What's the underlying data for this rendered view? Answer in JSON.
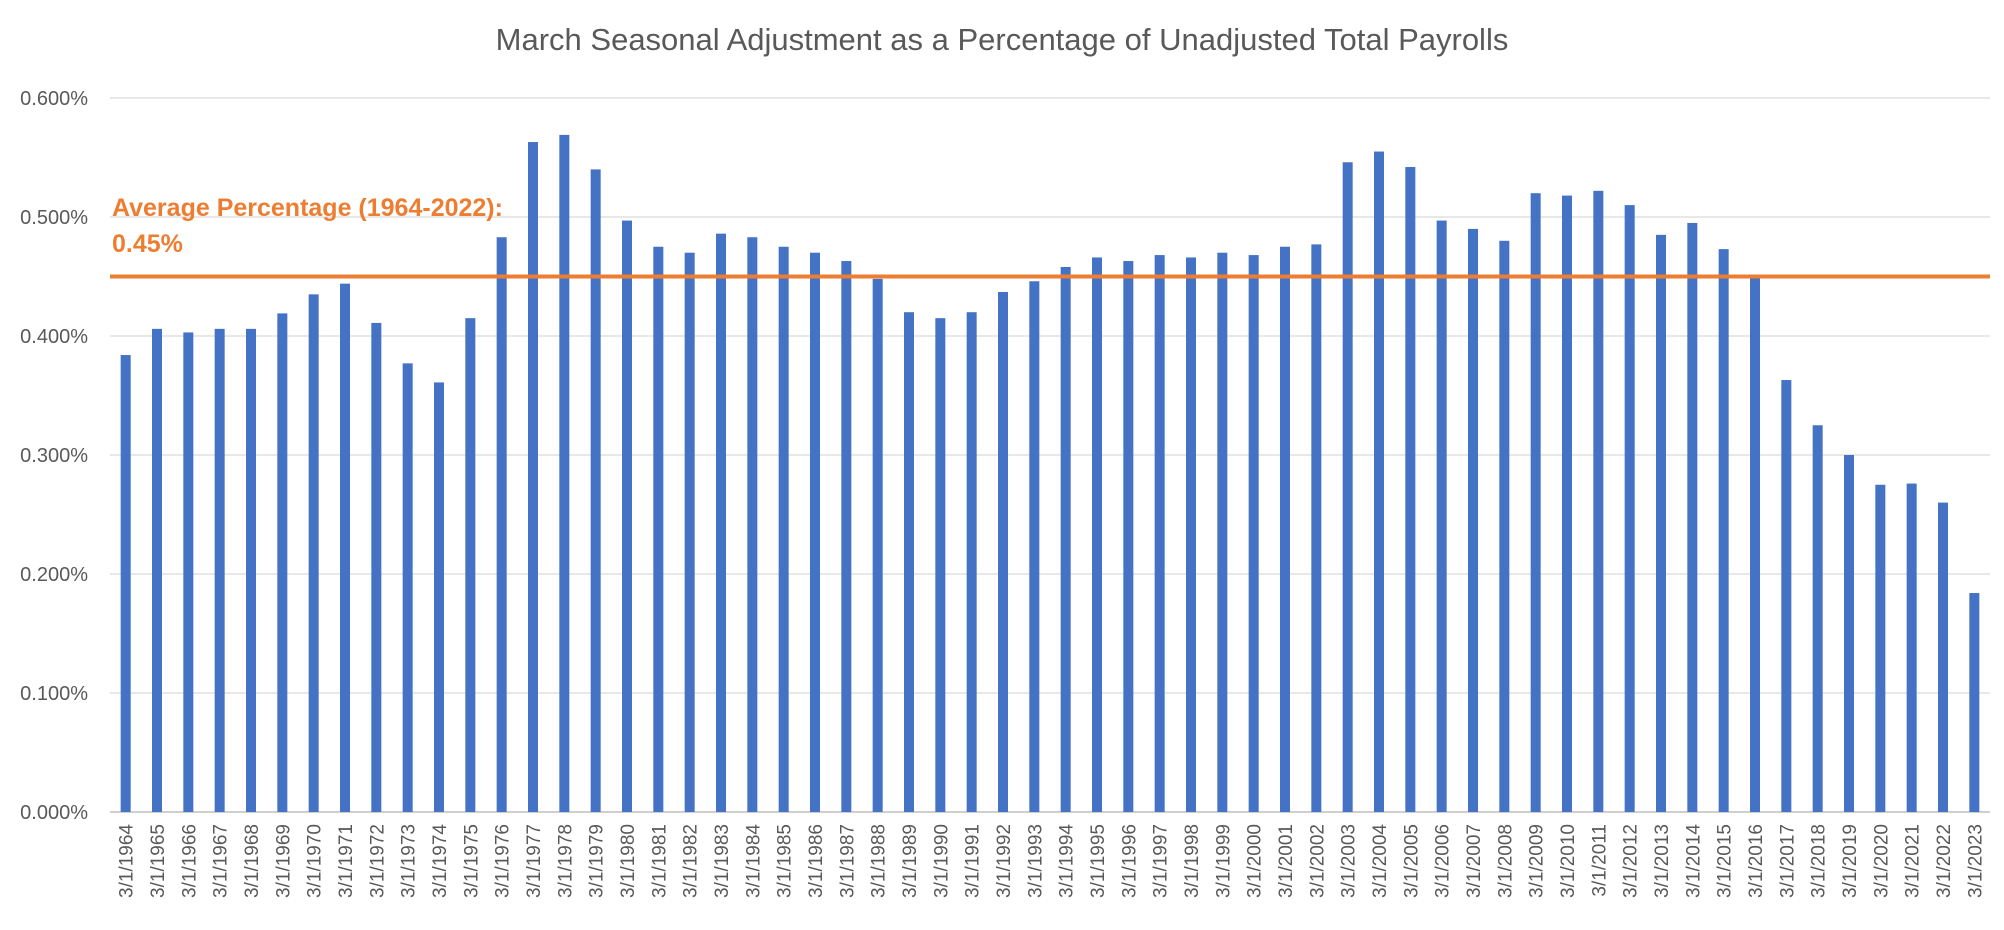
{
  "chart_data": {
    "type": "bar",
    "title": "March Seasonal Adjustment as a Percentage of Unadjusted Total Payrolls",
    "xlabel": "",
    "ylabel": "",
    "ylim": [
      0,
      0.6
    ],
    "y_ticks": [
      "0.000%",
      "0.100%",
      "0.200%",
      "0.300%",
      "0.400%",
      "0.500%",
      "0.600%"
    ],
    "grid": true,
    "legend": "none",
    "categories": [
      "3/1/1964",
      "3/1/1965",
      "3/1/1966",
      "3/1/1967",
      "3/1/1968",
      "3/1/1969",
      "3/1/1970",
      "3/1/1971",
      "3/1/1972",
      "3/1/1973",
      "3/1/1974",
      "3/1/1975",
      "3/1/1976",
      "3/1/1977",
      "3/1/1978",
      "3/1/1979",
      "3/1/1980",
      "3/1/1981",
      "3/1/1982",
      "3/1/1983",
      "3/1/1984",
      "3/1/1985",
      "3/1/1986",
      "3/1/1987",
      "3/1/1988",
      "3/1/1989",
      "3/1/1990",
      "3/1/1991",
      "3/1/1992",
      "3/1/1993",
      "3/1/1994",
      "3/1/1995",
      "3/1/1996",
      "3/1/1997",
      "3/1/1998",
      "3/1/1999",
      "3/1/2000",
      "3/1/2001",
      "3/1/2002",
      "3/1/2003",
      "3/1/2004",
      "3/1/2005",
      "3/1/2006",
      "3/1/2007",
      "3/1/2008",
      "3/1/2009",
      "3/1/2010",
      "3/1/2011",
      "3/1/2012",
      "3/1/2013",
      "3/1/2014",
      "3/1/2015",
      "3/1/2016",
      "3/1/2017",
      "3/1/2018",
      "3/1/2019",
      "3/1/2020",
      "3/1/2021",
      "3/1/2022",
      "3/1/2023"
    ],
    "values": [
      0.384,
      0.406,
      0.403,
      0.406,
      0.406,
      0.419,
      0.435,
      0.444,
      0.411,
      0.377,
      0.361,
      0.415,
      0.483,
      0.563,
      0.569,
      0.54,
      0.497,
      0.475,
      0.47,
      0.486,
      0.483,
      0.475,
      0.47,
      0.463,
      0.448,
      0.42,
      0.415,
      0.42,
      0.437,
      0.446,
      0.458,
      0.466,
      0.463,
      0.468,
      0.466,
      0.47,
      0.468,
      0.475,
      0.477,
      0.546,
      0.555,
      0.542,
      0.497,
      0.49,
      0.48,
      0.52,
      0.518,
      0.522,
      0.51,
      0.485,
      0.495,
      0.473,
      0.45,
      0.363,
      0.325,
      0.3,
      0.275,
      0.276,
      0.26,
      0.184
    ],
    "bar_color": "#4472C4",
    "reference_line": {
      "value": 0.45,
      "color": "#ED7D31"
    },
    "annotation": {
      "line1": "Average Percentage (1964-2022):",
      "line2": "0.45%",
      "color": "#ED7D31"
    }
  }
}
